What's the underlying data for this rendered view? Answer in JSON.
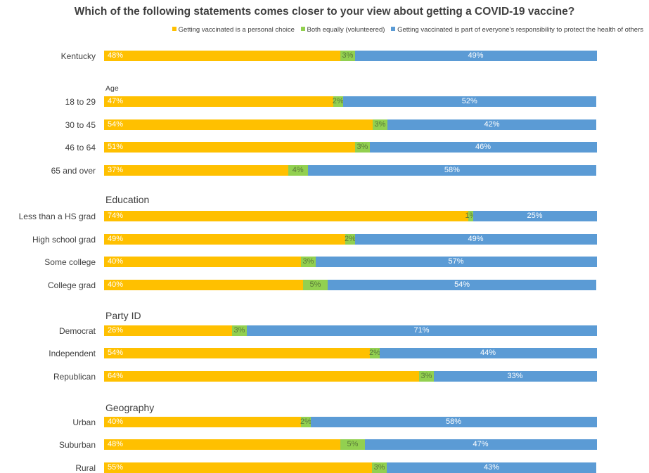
{
  "colors": {
    "personal": "#FFC000",
    "both": "#92D050",
    "responsibility": "#5B9BD5",
    "both_label": "#5a7a3a",
    "personal_label": "#ffffff",
    "responsibility_label": "#ffffff"
  },
  "chart_data": {
    "type": "bar",
    "orientation": "horizontal",
    "stacked": true,
    "normalized": true,
    "title": "Which of the following statements comes closer to your view about getting a COVID-19 vaccine?",
    "legend_placement": "top",
    "legend": [
      "Getting vaccinated is a personal choice",
      "Both equally (volunteered)",
      "Getting vaccinated is part of everyone’s responsibility to protect the health of others"
    ],
    "groups": [
      {
        "label": "",
        "rows": [
          {
            "label": "Kentucky",
            "values": [
              48,
              3,
              49
            ],
            "text": [
              "48%",
              "3%",
              "49%"
            ]
          }
        ]
      },
      {
        "label": "Age",
        "rows": [
          {
            "label": "18 to 29",
            "values": [
              47,
              2,
              52
            ],
            "text": [
              "47%",
              "2%",
              "52%"
            ]
          },
          {
            "label": "30 to 45",
            "values": [
              54,
              3,
              42
            ],
            "text": [
              "54%",
              "3%",
              "42%"
            ]
          },
          {
            "label": "46 to 64",
            "values": [
              51,
              3,
              46
            ],
            "text": [
              "51%",
              "3%",
              "46%"
            ]
          },
          {
            "label": "65 and over",
            "values": [
              37,
              4,
              58
            ],
            "text": [
              "37%",
              "4%",
              "58%"
            ]
          }
        ]
      },
      {
        "label": "Education",
        "rows": [
          {
            "label": "Less than a HS grad",
            "values": [
              74,
              1,
              25
            ],
            "text": [
              "74%",
              "1%",
              "25%"
            ]
          },
          {
            "label": "High school grad",
            "values": [
              49,
              2,
              49
            ],
            "text": [
              "49%",
              "2%",
              "49%"
            ]
          },
          {
            "label": "Some college",
            "values": [
              40,
              3,
              57
            ],
            "text": [
              "40%",
              "3%",
              "57%"
            ]
          },
          {
            "label": "College grad",
            "values": [
              40,
              5,
              54
            ],
            "text": [
              "40%",
              "5%",
              "54%"
            ]
          }
        ]
      },
      {
        "label": "Party ID",
        "rows": [
          {
            "label": "Democrat",
            "values": [
              26,
              3,
              71
            ],
            "text": [
              "26%",
              "3%",
              "71%"
            ]
          },
          {
            "label": "Independent",
            "values": [
              54,
              2,
              44
            ],
            "text": [
              "54%",
              "2%",
              "44%"
            ]
          },
          {
            "label": "Republican",
            "values": [
              64,
              3,
              33
            ],
            "text": [
              "64%",
              "3%",
              "33%"
            ]
          }
        ]
      },
      {
        "label": "Geography",
        "rows": [
          {
            "label": "Urban",
            "values": [
              40,
              2,
              58
            ],
            "text": [
              "40%",
              "2%",
              "58%"
            ]
          },
          {
            "label": "Suburban",
            "values": [
              48,
              5,
              47
            ],
            "text": [
              "48%",
              "5%",
              "47%"
            ]
          },
          {
            "label": "Rural",
            "values": [
              55,
              3,
              43
            ],
            "text": [
              "55%",
              "3%",
              "43%"
            ]
          }
        ]
      }
    ]
  }
}
